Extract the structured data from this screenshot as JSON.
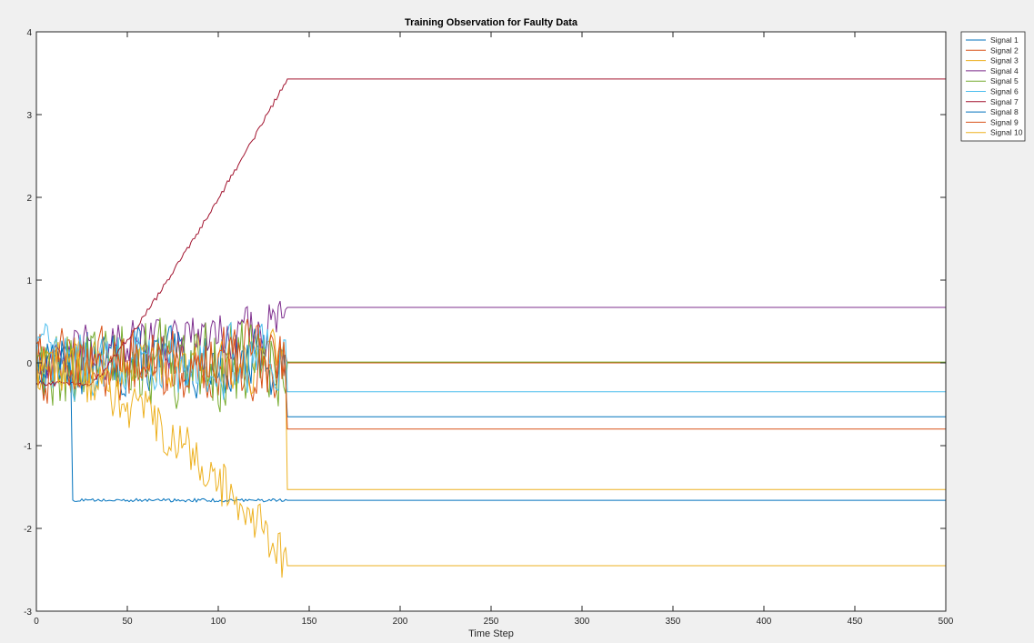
{
  "chart_data": {
    "type": "line",
    "title": "Training Observation for Faulty Data",
    "xlabel": "Time Step",
    "ylabel": "",
    "xlim": [
      0,
      500
    ],
    "ylim": [
      -3,
      4
    ],
    "x_ticks": [
      0,
      50,
      100,
      150,
      200,
      250,
      300,
      350,
      400,
      450,
      500
    ],
    "y_ticks": [
      -3,
      -2,
      -1,
      0,
      1,
      2,
      3,
      4
    ],
    "grid": false,
    "legend_position": "outside-top-right",
    "fault_onset_step": 138,
    "series": [
      {
        "name": "Signal 1",
        "color": "#0072BD",
        "final_value": -0.65,
        "noise_amplitude": 0.55
      },
      {
        "name": "Signal 2",
        "color": "#D95319",
        "final_value": 0.0,
        "noise_amplitude": 0.55
      },
      {
        "name": "Signal 3",
        "color": "#EDB120",
        "final_value": -1.53,
        "noise_amplitude": 0.45
      },
      {
        "name": "Signal 4",
        "color": "#7E2F8E",
        "final_value": 0.67,
        "noise_amplitude": 0.45
      },
      {
        "name": "Signal 5",
        "color": "#77AC30",
        "final_value": 0.01,
        "noise_amplitude": 0.75
      },
      {
        "name": "Signal 6",
        "color": "#4DBEEE",
        "final_value": -0.35,
        "noise_amplitude": 0.6
      },
      {
        "name": "Signal 7",
        "color": "#A2142F",
        "final_value": 3.43,
        "noise_amplitude": 0.03
      },
      {
        "name": "Signal 8",
        "color": "#0072BD",
        "final_value": -1.66,
        "noise_amplitude": 0.02
      },
      {
        "name": "Signal 9",
        "color": "#D95319",
        "final_value": -0.8,
        "noise_amplitude": 0.6
      },
      {
        "name": "Signal 10",
        "color": "#EDB120",
        "final_value": -2.45,
        "noise_amplitude": 0.3
      }
    ]
  }
}
